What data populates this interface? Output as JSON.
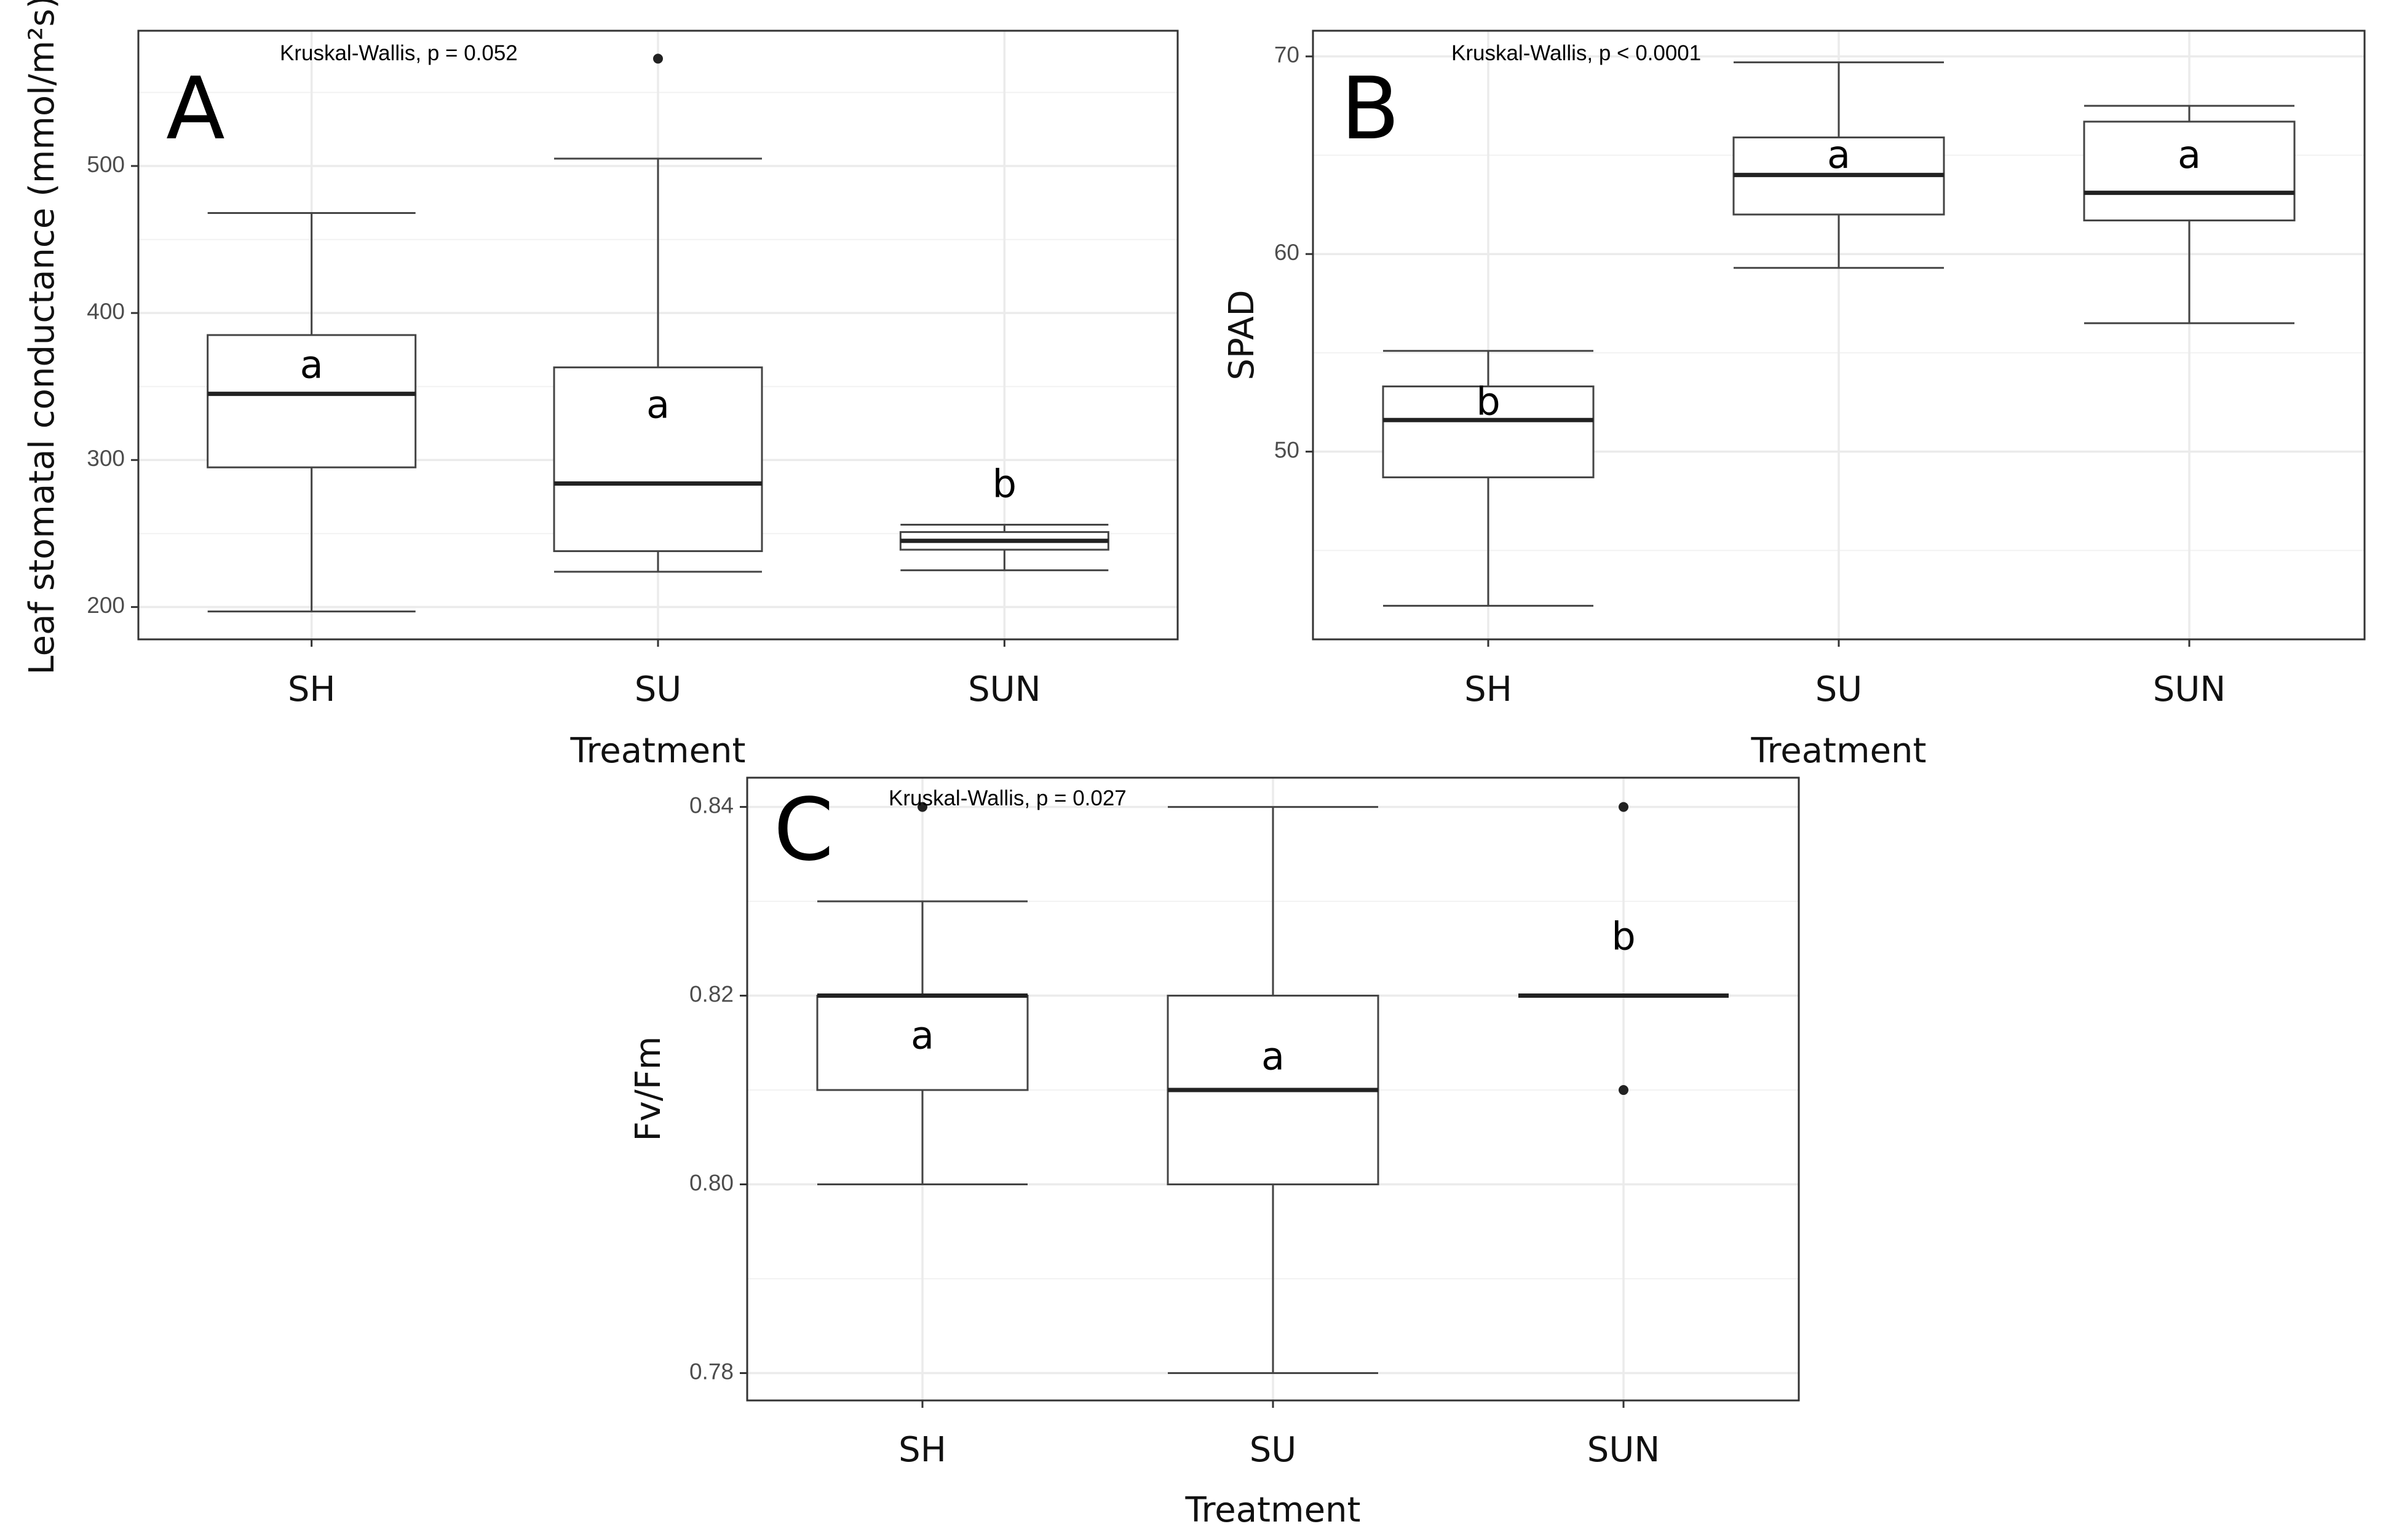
{
  "chart_data": [
    {
      "panel": "A",
      "type": "boxplot",
      "categories": [
        "SH",
        "SU",
        "SUN"
      ],
      "xlabel": "Treatment",
      "ylabel": "Leaf stomatal conductance (mmol/m²s)",
      "ylim": [
        178,
        592
      ],
      "yticks": [
        200,
        300,
        400,
        500
      ],
      "ytick_labels": [
        "200",
        "300",
        "400",
        "500"
      ],
      "annotation": "Kruskal-Wallis, p = 0.052",
      "boxes": [
        {
          "category": "SH",
          "whisker_low": 197,
          "q1": 295,
          "median": 345,
          "q3": 385,
          "whisker_high": 468,
          "outliers": [],
          "letter": "a",
          "letter_y": 363
        },
        {
          "category": "SU",
          "whisker_low": 224,
          "q1": 238,
          "median": 284,
          "q3": 363,
          "whisker_high": 505,
          "outliers": [
            573
          ],
          "letter": "a",
          "letter_y": 336
        },
        {
          "category": "SUN",
          "whisker_low": 225,
          "q1": 239,
          "median": 245,
          "q3": 251,
          "whisker_high": 256,
          "outliers": [],
          "letter": "b",
          "letter_y": 282
        }
      ]
    },
    {
      "panel": "B",
      "type": "boxplot",
      "categories": [
        "SH",
        "SU",
        "SUN"
      ],
      "xlabel": "Treatment",
      "ylabel": "SPAD",
      "ylim": [
        40.5,
        71.3
      ],
      "yticks": [
        50,
        60,
        70
      ],
      "ytick_labels": [
        "50",
        "60",
        "70"
      ],
      "annotation": "Kruskal-Wallis, p < 0.0001",
      "boxes": [
        {
          "category": "SH",
          "whisker_low": 42.2,
          "q1": 48.7,
          "median": 51.6,
          "q3": 53.3,
          "whisker_high": 55.1,
          "outliers": [],
          "letter": "b",
          "letter_y": 52.4
        },
        {
          "category": "SU",
          "whisker_low": 59.3,
          "q1": 62.0,
          "median": 64.0,
          "q3": 65.9,
          "whisker_high": 69.7,
          "outliers": [],
          "letter": "a",
          "letter_y": 64.9
        },
        {
          "category": "SUN",
          "whisker_low": 56.5,
          "q1": 61.7,
          "median": 63.1,
          "q3": 66.7,
          "whisker_high": 67.5,
          "outliers": [],
          "letter": "a",
          "letter_y": 64.9
        }
      ]
    },
    {
      "panel": "C",
      "type": "boxplot",
      "categories": [
        "SH",
        "SU",
        "SUN"
      ],
      "xlabel": "Treatment",
      "ylabel": "Fv/Fm",
      "ylim": [
        0.7771,
        0.8431
      ],
      "yticks": [
        0.78,
        0.8,
        0.82,
        0.84
      ],
      "ytick_labels": [
        "0.78",
        "0.80",
        "0.82",
        "0.84"
      ],
      "annotation": "Kruskal-Wallis, p = 0.027",
      "boxes": [
        {
          "category": "SH",
          "whisker_low": 0.8,
          "q1": 0.81,
          "median": 0.82,
          "q3": 0.82,
          "whisker_high": 0.83,
          "outliers": [
            0.84
          ],
          "letter": "a",
          "letter_y": 0.8155
        },
        {
          "category": "SU",
          "whisker_low": 0.78,
          "q1": 0.8,
          "median": 0.81,
          "q3": 0.82,
          "whisker_high": 0.84,
          "outliers": [],
          "letter": "a",
          "letter_y": 0.8133
        },
        {
          "category": "SUN",
          "whisker_low": 0.82,
          "q1": 0.82,
          "median": 0.82,
          "q3": 0.82,
          "whisker_high": 0.82,
          "outliers": [
            0.84,
            0.81
          ],
          "letter": "b",
          "letter_y": 0.826
        }
      ]
    }
  ]
}
